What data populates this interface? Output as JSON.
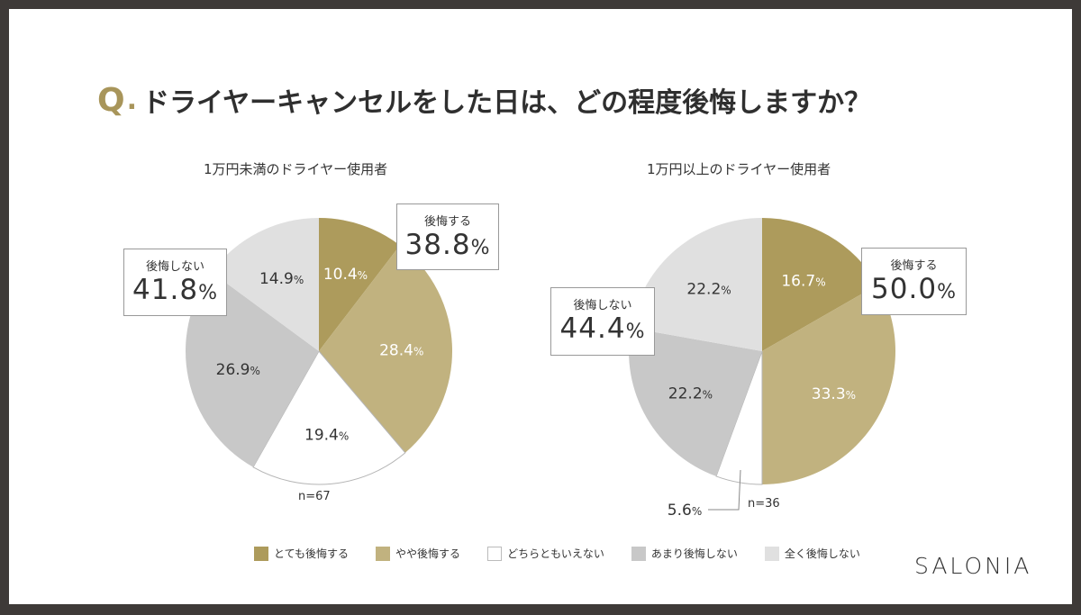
{
  "title": {
    "q": "Q",
    "dot": ".",
    "text": "ドライヤーキャンセルをした日は、どの程度後悔しますか？"
  },
  "legend": [
    {
      "label": "とても後悔する",
      "color": "#ad9b5c"
    },
    {
      "label": "やや後悔する",
      "color": "#c1b27f"
    },
    {
      "label": "どちらともいえない",
      "color": "#ffffff"
    },
    {
      "label": "あまり後悔しない",
      "color": "#c8c8c8"
    },
    {
      "label": "全く後悔しない",
      "color": "#e0e0e0"
    }
  ],
  "logo": "SALONIA",
  "chart_data": [
    {
      "type": "pie",
      "title": "1万円未満のドライヤー使用者",
      "n_label": "n=67",
      "categories": [
        "とても後悔する",
        "やや後悔する",
        "どちらともいえない",
        "あまり後悔しない",
        "全く後悔しない"
      ],
      "values": [
        10.4,
        28.4,
        19.4,
        26.9,
        14.9
      ],
      "labels": [
        "10.4",
        "28.4",
        "19.4",
        "26.9",
        "14.9"
      ],
      "pct": "%",
      "callouts": [
        {
          "label": "後悔する",
          "value": "38.8",
          "pct": "%"
        },
        {
          "label": "後悔しない",
          "value": "41.8",
          "pct": "%"
        }
      ]
    },
    {
      "type": "pie",
      "title": "1万円以上のドライヤー使用者",
      "n_label": "n=36",
      "categories": [
        "とても後悔する",
        "やや後悔する",
        "どちらともいえない",
        "あまり後悔しない",
        "全く後悔しない"
      ],
      "values": [
        16.7,
        33.3,
        5.6,
        22.2,
        22.2
      ],
      "labels": [
        "16.7",
        "33.3",
        "5.6",
        "22.2",
        "22.2"
      ],
      "pct": "%",
      "callouts": [
        {
          "label": "後悔する",
          "value": "50.0",
          "pct": "%"
        },
        {
          "label": "後悔しない",
          "value": "44.4",
          "pct": "%"
        }
      ]
    }
  ]
}
